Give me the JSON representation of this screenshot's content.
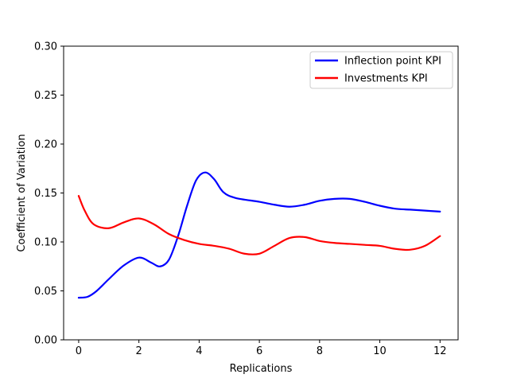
{
  "chart_data": {
    "type": "line",
    "title": "",
    "xlabel": "Replications",
    "ylabel": "Coefficient of Variation",
    "xlim": [
      -0.5,
      12.6
    ],
    "ylim": [
      0.0,
      0.3
    ],
    "x_ticks": [
      0,
      2,
      4,
      6,
      8,
      10,
      12
    ],
    "x_tick_labels": [
      "0",
      "2",
      "4",
      "6",
      "8",
      "10",
      "12"
    ],
    "y_ticks": [
      0.0,
      0.05,
      0.1,
      0.15,
      0.2,
      0.25,
      0.3
    ],
    "y_tick_labels": [
      "0.00",
      "0.05",
      "0.10",
      "0.15",
      "0.20",
      "0.25",
      "0.30"
    ],
    "grid": false,
    "legend_position": "top-right",
    "series": [
      {
        "name": "Inflection point KPI",
        "color": "#0000ff",
        "x": [
          0,
          0.3,
          0.6,
          1,
          1.5,
          2,
          2.4,
          2.7,
          3,
          3.3,
          3.6,
          3.9,
          4.2,
          4.5,
          4.8,
          5.2,
          6,
          6.5,
          7,
          7.5,
          8,
          8.5,
          9,
          9.5,
          10,
          10.5,
          11,
          11.5,
          12
        ],
        "y": [
          0.043,
          0.044,
          0.05,
          0.062,
          0.076,
          0.084,
          0.079,
          0.075,
          0.082,
          0.106,
          0.137,
          0.163,
          0.171,
          0.164,
          0.151,
          0.145,
          0.141,
          0.138,
          0.136,
          0.138,
          0.142,
          0.144,
          0.144,
          0.141,
          0.137,
          0.134,
          0.133,
          0.132,
          0.131
        ]
      },
      {
        "name": "Investments KPI",
        "color": "#ff0000",
        "x": [
          0,
          0.2,
          0.5,
          1,
          1.5,
          2,
          2.5,
          3,
          3.5,
          4,
          4.5,
          5,
          5.5,
          6,
          6.5,
          7,
          7.5,
          8,
          8.5,
          9,
          9.5,
          10,
          10.5,
          11,
          11.5,
          12
        ],
        "y": [
          0.147,
          0.132,
          0.118,
          0.114,
          0.12,
          0.124,
          0.118,
          0.108,
          0.102,
          0.098,
          0.096,
          0.093,
          0.088,
          0.088,
          0.096,
          0.104,
          0.105,
          0.101,
          0.099,
          0.098,
          0.097,
          0.096,
          0.093,
          0.092,
          0.096,
          0.106
        ]
      }
    ]
  }
}
